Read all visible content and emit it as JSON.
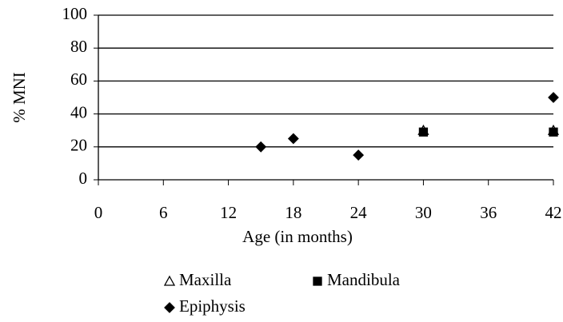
{
  "chart_data": {
    "type": "scatter",
    "x_label": "Age (in months)",
    "y_label": "% MNI",
    "xlim": [
      0,
      42
    ],
    "xticks": [
      0,
      6,
      12,
      18,
      24,
      30,
      36,
      42
    ],
    "ylim": [
      0,
      100
    ],
    "yticks": [
      0,
      20,
      40,
      60,
      80,
      100
    ],
    "grid": true,
    "legend": "bottom",
    "series": [
      {
        "name": "Maxilla",
        "color": "#ffffff",
        "marker": "triangle",
        "x": [
          30,
          42
        ],
        "values": [
          30,
          30
        ]
      },
      {
        "name": "Mandibula",
        "color": "#000000",
        "marker": "square",
        "x": [
          30,
          42
        ],
        "values": [
          29,
          29
        ]
      },
      {
        "name": "Epiphysis",
        "color": "#000000",
        "marker": "diamond",
        "x": [
          15,
          18,
          24,
          42
        ],
        "values": [
          20,
          25,
          15,
          50
        ]
      }
    ]
  }
}
